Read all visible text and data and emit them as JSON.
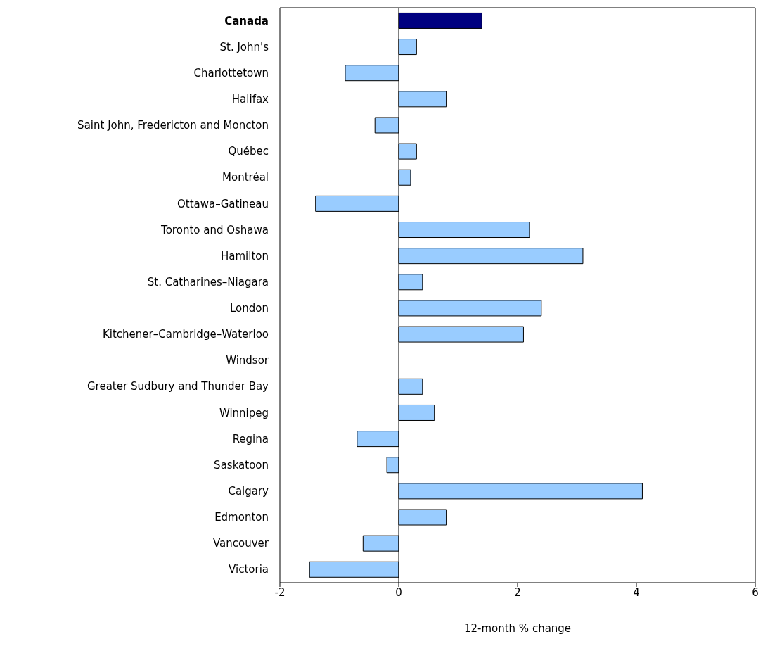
{
  "chart_data": {
    "type": "bar",
    "orientation": "horizontal",
    "xlabel": "12-month % change",
    "categories": [
      "Canada",
      "St. John's",
      "Charlottetown",
      "Halifax",
      "Saint John, Fredericton and Moncton",
      "Québec",
      "Montréal",
      "Ottawa–Gatineau",
      "Toronto and Oshawa",
      "Hamilton",
      "St. Catharines–Niagara",
      "London",
      "Kitchener–Cambridge–Waterloo",
      "Windsor",
      "Greater Sudbury and Thunder Bay",
      "Winnipeg",
      "Regina",
      "Saskatoon",
      "Calgary",
      "Edmonton",
      "Vancouver",
      "Victoria"
    ],
    "values": [
      1.4,
      0.3,
      -0.9,
      0.8,
      -0.4,
      0.3,
      0.2,
      -1.4,
      2.2,
      3.1,
      0.4,
      2.4,
      2.1,
      0,
      0.4,
      0.6,
      -0.7,
      -0.2,
      4.1,
      0.8,
      -0.6,
      -1.5
    ],
    "colors": [
      "#000080",
      "#99ccff",
      "#99ccff",
      "#99ccff",
      "#99ccff",
      "#99ccff",
      "#99ccff",
      "#99ccff",
      "#99ccff",
      "#99ccff",
      "#99ccff",
      "#99ccff",
      "#99ccff",
      "#99ccff",
      "#99ccff",
      "#99ccff",
      "#99ccff",
      "#99ccff",
      "#99ccff",
      "#99ccff",
      "#99ccff",
      "#99ccff"
    ],
    "xlim": [
      -2,
      6
    ],
    "xticks": [
      -2,
      0,
      2,
      4,
      6
    ],
    "ref_lines": [
      {
        "axis": "x",
        "value": 0,
        "color": "#000000"
      }
    ],
    "grid": false,
    "legend": false
  }
}
